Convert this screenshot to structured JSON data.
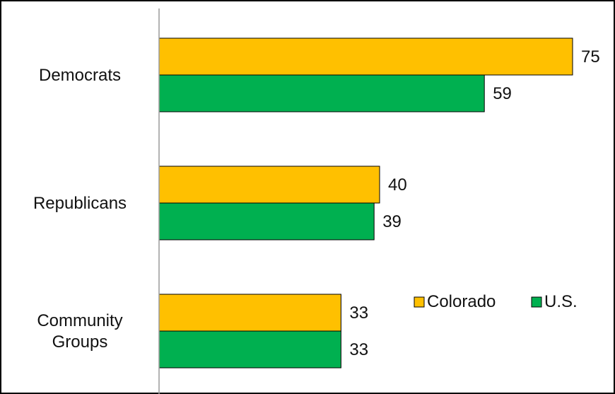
{
  "chart_data": {
    "type": "bar",
    "orientation": "horizontal",
    "categories": [
      [
        "Democrats"
      ],
      [
        "Republicans"
      ],
      [
        "Community",
        "Groups"
      ]
    ],
    "series": [
      {
        "name": "Colorado",
        "values": [
          75,
          40,
          33
        ],
        "color": "#FFC000"
      },
      {
        "name": "U.S.",
        "values": [
          59,
          39,
          33
        ],
        "color": "#00B050"
      }
    ],
    "xlim": [
      0,
      75
    ],
    "grid": false,
    "legend_position": "right",
    "title": "",
    "xlabel": "",
    "ylabel": ""
  }
}
